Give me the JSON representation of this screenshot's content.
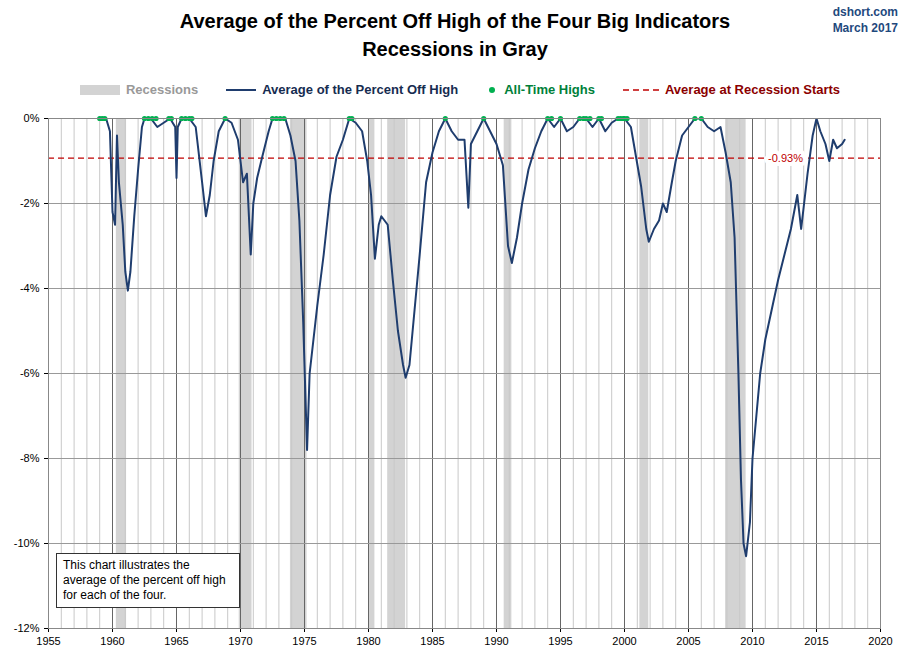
{
  "chart_data": {
    "type": "line",
    "title": "Average of the Percent Off High of the Four Big Indicators",
    "subtitle": "Recessions in Gray",
    "source": [
      "dshort.com",
      "March 2017"
    ],
    "annotation": "This chart illustrates the average of the percent off high for each of the four.",
    "legend": "top",
    "grid": true,
    "xlim": [
      1955,
      2020
    ],
    "xticks": [
      1955,
      1960,
      1965,
      1970,
      1975,
      1980,
      1985,
      1990,
      1995,
      2000,
      2005,
      2010,
      2015,
      2020
    ],
    "ylim": [
      -12,
      0
    ],
    "yticks": [
      {
        "value": 0,
        "label": "0%"
      },
      {
        "value": -2,
        "label": "-2%"
      },
      {
        "value": -4,
        "label": "-4%"
      },
      {
        "value": -6,
        "label": "-6%"
      },
      {
        "value": -8,
        "label": "-8%"
      },
      {
        "value": -10,
        "label": "-10%"
      },
      {
        "value": -12,
        "label": "-12%"
      }
    ],
    "recessions": {
      "name": "Recessions",
      "color": "#d3d3d3",
      "spans": [
        [
          1960.3,
          1961.1
        ],
        [
          1969.9,
          1970.9
        ],
        [
          1973.9,
          1975.2
        ],
        [
          1980.0,
          1980.5
        ],
        [
          1981.5,
          1982.9
        ],
        [
          1990.6,
          1991.2
        ],
        [
          2001.2,
          2001.9
        ],
        [
          2007.9,
          2009.5
        ]
      ]
    },
    "x": [
      1959.0,
      1959.5,
      1959.8,
      1960.0,
      1960.2,
      1960.35,
      1960.5,
      1960.8,
      1961.0,
      1961.2,
      1961.4,
      1961.7,
      1962.0,
      1962.3,
      1962.5,
      1963.0,
      1963.5,
      1964.0,
      1964.5,
      1964.9,
      1965.0,
      1965.1,
      1965.4,
      1966.0,
      1966.5,
      1967.0,
      1967.3,
      1967.6,
      1967.9,
      1968.3,
      1968.8,
      1969.3,
      1969.8,
      1970.2,
      1970.5,
      1970.8,
      1971.0,
      1971.3,
      1971.7,
      1972.2,
      1972.5,
      1973.0,
      1973.5,
      1973.9,
      1974.3,
      1974.6,
      1974.9,
      1975.2,
      1975.4,
      1975.7,
      1976.0,
      1976.5,
      1977.0,
      1977.5,
      1978.0,
      1978.5,
      1979.0,
      1979.5,
      1979.9,
      1980.2,
      1980.5,
      1980.8,
      1981.0,
      1981.5,
      1981.9,
      1982.3,
      1982.7,
      1982.9,
      1983.2,
      1983.6,
      1984.0,
      1984.5,
      1985.0,
      1985.5,
      1986.0,
      1986.5,
      1987.0,
      1987.5,
      1987.8,
      1988.0,
      1988.5,
      1989.0,
      1989.5,
      1990.0,
      1990.5,
      1990.9,
      1991.2,
      1991.6,
      1992.0,
      1992.5,
      1993.0,
      1993.5,
      1994.0,
      1994.5,
      1995.0,
      1995.5,
      1996.0,
      1996.5,
      1997.0,
      1997.5,
      1998.0,
      1998.5,
      1999.0,
      1999.5,
      2000.0,
      2000.5,
      2000.9,
      2001.3,
      2001.7,
      2001.9,
      2002.3,
      2002.7,
      2003.0,
      2003.3,
      2003.7,
      2004.0,
      2004.5,
      2005.0,
      2005.5,
      2006.0,
      2006.5,
      2007.0,
      2007.5,
      2007.9,
      2008.3,
      2008.6,
      2008.9,
      2009.1,
      2009.3,
      2009.5,
      2009.8,
      2010.0,
      2010.3,
      2010.6,
      2011.0,
      2011.5,
      2012.0,
      2012.5,
      2013.0,
      2013.5,
      2013.8,
      2014.3,
      2014.7,
      2015.0,
      2015.3,
      2015.7,
      2016.0,
      2016.3,
      2016.6,
      2017.0,
      2017.2
    ],
    "series": [
      {
        "name": "Average of the Percent Off High",
        "color": "#1f3d6e",
        "line_style": "solid",
        "values": [
          0,
          0,
          -0.3,
          -2.2,
          -2.5,
          -0.4,
          -1.5,
          -2.5,
          -3.6,
          -4.05,
          -3.6,
          -2.3,
          -1.2,
          -0.2,
          0,
          0,
          -0.2,
          -0.1,
          0,
          -0.2,
          -1.4,
          -0.2,
          0,
          0,
          -0.2,
          -1.5,
          -2.3,
          -1.8,
          -1.0,
          -0.3,
          0,
          -0.1,
          -0.5,
          -1.5,
          -1.3,
          -3.2,
          -2.0,
          -1.4,
          -0.9,
          -0.3,
          0,
          0,
          0,
          -0.4,
          -1.0,
          -2.4,
          -4.8,
          -7.8,
          -6.0,
          -5.2,
          -4.4,
          -3.2,
          -1.8,
          -0.9,
          -0.5,
          0,
          -0.1,
          -0.3,
          -1.0,
          -1.8,
          -3.3,
          -2.5,
          -2.3,
          -2.5,
          -3.8,
          -5.0,
          -5.8,
          -6.1,
          -5.8,
          -4.5,
          -3.2,
          -1.5,
          -0.8,
          -0.3,
          0,
          -0.3,
          -0.5,
          -0.5,
          -2.1,
          -0.6,
          -0.3,
          0,
          -0.3,
          -0.6,
          -1.1,
          -3.0,
          -3.4,
          -2.8,
          -2.0,
          -1.2,
          -0.7,
          -0.3,
          0,
          -0.2,
          0,
          -0.3,
          -0.2,
          0,
          0,
          -0.2,
          0,
          -0.3,
          -0.1,
          0,
          0,
          -0.2,
          -0.9,
          -1.6,
          -2.6,
          -2.9,
          -2.6,
          -2.4,
          -2.0,
          -2.2,
          -1.5,
          -1.0,
          -0.4,
          -0.2,
          0,
          0,
          -0.2,
          -0.3,
          -0.2,
          -0.8,
          -1.5,
          -2.8,
          -6.0,
          -8.5,
          -10.0,
          -10.3,
          -9.5,
          -8.0,
          -7.0,
          -6.0,
          -5.2,
          -4.5,
          -3.8,
          -3.2,
          -2.6,
          -1.8,
          -2.6,
          -1.3,
          -0.4,
          0,
          -0.3,
          -0.6,
          -1.0,
          -0.5,
          -0.7,
          -0.6,
          -0.5
        ]
      }
    ],
    "all_time_highs": {
      "name": "All-Time Highs",
      "color": "#00b050",
      "marker": "circle",
      "x": [
        1959.0,
        1959.2,
        1959.4,
        1962.5,
        1962.8,
        1963.1,
        1963.4,
        1964.4,
        1964.6,
        1965.4,
        1965.7,
        1966.0,
        1966.2,
        1968.8,
        1972.5,
        1972.8,
        1973.1,
        1973.4,
        1978.5,
        1978.7,
        1986.0,
        1989.0,
        1994.0,
        1994.3,
        1995.0,
        1996.5,
        1996.8,
        1997.0,
        1997.3,
        1998.0,
        1998.2,
        1999.5,
        1999.7,
        1999.9,
        2000.0,
        2000.2,
        2005.5,
        2006.0
      ],
      "values": [
        0,
        0,
        0,
        0,
        0,
        0,
        0,
        0,
        0,
        0,
        0,
        0,
        0,
        0,
        0,
        0,
        0,
        0,
        0,
        0,
        0,
        0,
        0,
        0,
        0,
        0,
        0,
        0,
        0,
        0,
        0,
        0,
        0,
        0,
        0,
        0,
        0,
        0
      ]
    },
    "reference_line": {
      "name": "Average at Recession Starts",
      "color": "#c00000",
      "line_style": "dashed",
      "value": -0.93,
      "label": "-0.93%"
    }
  }
}
